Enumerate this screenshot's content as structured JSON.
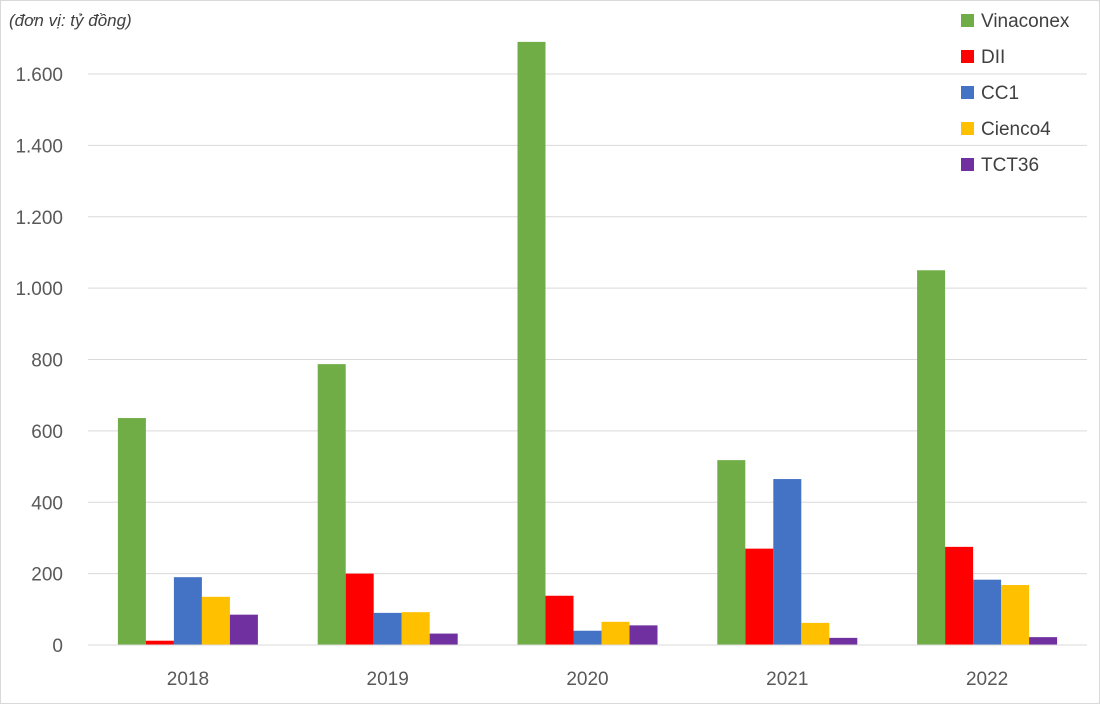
{
  "chart_data": {
    "type": "bar",
    "unit_note": "(đơn vị: tỷ đồng)",
    "categories": [
      "2018",
      "2019",
      "2020",
      "2021",
      "2022"
    ],
    "series": [
      {
        "name": "Vinaconex",
        "color": "#70ad47",
        "values": [
          636,
          787,
          1690,
          518,
          1050
        ]
      },
      {
        "name": "DII",
        "color": "#ff0000",
        "values": [
          12,
          200,
          138,
          270,
          275
        ]
      },
      {
        "name": "CC1",
        "color": "#4472c4",
        "values": [
          190,
          90,
          40,
          465,
          183
        ]
      },
      {
        "name": "Cienco4",
        "color": "#ffc000",
        "values": [
          135,
          92,
          65,
          62,
          168
        ]
      },
      {
        "name": "TCT36",
        "color": "#7030a0",
        "values": [
          85,
          32,
          55,
          20,
          22
        ]
      }
    ],
    "ylim": [
      0,
      1700
    ],
    "yticks": [
      {
        "value": 0,
        "label": "0"
      },
      {
        "value": 200,
        "label": "200"
      },
      {
        "value": 400,
        "label": "400"
      },
      {
        "value": 600,
        "label": "600"
      },
      {
        "value": 800,
        "label": "800"
      },
      {
        "value": 1000,
        "label": "1.000"
      },
      {
        "value": 1200,
        "label": "1.200"
      },
      {
        "value": 1400,
        "label": "1.400"
      },
      {
        "value": 1600,
        "label": "1.600"
      }
    ],
    "grid": true,
    "legend_position": "top-right"
  }
}
